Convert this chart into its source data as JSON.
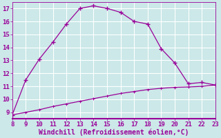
{
  "xlabel": "Windchill (Refroidissement éolien,°C)",
  "x_main": [
    8,
    9,
    10,
    11,
    12,
    13,
    14,
    15,
    16,
    17,
    18,
    19,
    20,
    21,
    22,
    23
  ],
  "y_main": [
    8.8,
    11.5,
    13.1,
    14.4,
    15.8,
    17.0,
    17.2,
    17.0,
    16.7,
    16.0,
    15.8,
    13.9,
    12.8,
    11.2,
    11.3,
    11.1
  ],
  "x_line2": [
    8,
    9,
    10,
    11,
    12,
    13,
    14,
    15,
    16,
    17,
    18,
    19,
    20,
    21,
    22,
    23
  ],
  "y_line2": [
    8.8,
    9.0,
    9.2,
    9.45,
    9.65,
    9.85,
    10.05,
    10.25,
    10.45,
    10.6,
    10.75,
    10.85,
    10.92,
    10.95,
    11.0,
    11.1
  ],
  "line_color": "#990099",
  "marker": "+",
  "xlim": [
    8,
    23
  ],
  "ylim": [
    8.5,
    17.5
  ],
  "xticks": [
    8,
    9,
    10,
    11,
    12,
    13,
    14,
    15,
    16,
    17,
    18,
    19,
    20,
    21,
    22,
    23
  ],
  "yticks": [
    9,
    10,
    11,
    12,
    13,
    14,
    15,
    16,
    17
  ],
  "bg_color": "#cce8e8",
  "grid_color": "#ffffff",
  "tick_fontsize": 6.5,
  "label_fontsize": 7.0
}
